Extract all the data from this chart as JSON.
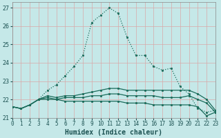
{
  "title": "",
  "xlabel": "Humidex (Indice chaleur)",
  "xlim": [
    0,
    23
  ],
  "ylim": [
    21.0,
    27.3
  ],
  "yticks": [
    21,
    22,
    23,
    24,
    25,
    26,
    27
  ],
  "xticks": [
    0,
    1,
    2,
    3,
    4,
    5,
    6,
    7,
    8,
    9,
    10,
    11,
    12,
    13,
    14,
    15,
    16,
    17,
    18,
    19,
    20,
    21,
    22,
    23
  ],
  "background_color": "#c5e8e8",
  "grid_color": "#d9a8a8",
  "line_color": "#1a6b5a",
  "series": [
    {
      "x": [
        0,
        1,
        2,
        3,
        4,
        5,
        6,
        7,
        8,
        9,
        10,
        11,
        12,
        13,
        14,
        15,
        16,
        17,
        18,
        19,
        20,
        21,
        22,
        23
      ],
      "y": [
        21.6,
        21.5,
        21.7,
        22.0,
        22.5,
        22.8,
        23.3,
        23.8,
        24.4,
        26.2,
        26.6,
        27.0,
        26.7,
        25.4,
        24.4,
        24.4,
        23.8,
        23.6,
        23.7,
        22.7,
        22.3,
        21.5,
        21.3,
        21.4
      ],
      "linestyle": "dotted",
      "linewidth": 0.9
    },
    {
      "x": [
        0,
        1,
        2,
        3,
        4,
        5,
        6,
        7,
        8,
        9,
        10,
        11,
        12,
        13,
        14,
        15,
        16,
        17,
        18,
        19,
        20,
        21,
        22,
        23
      ],
      "y": [
        21.6,
        21.5,
        21.7,
        22.0,
        22.2,
        22.1,
        22.2,
        22.2,
        22.3,
        22.4,
        22.5,
        22.6,
        22.6,
        22.5,
        22.5,
        22.5,
        22.5,
        22.5,
        22.5,
        22.5,
        22.5,
        22.3,
        22.0,
        21.4
      ],
      "linestyle": "solid",
      "linewidth": 0.9
    },
    {
      "x": [
        0,
        1,
        2,
        3,
        4,
        5,
        6,
        7,
        8,
        9,
        10,
        11,
        12,
        13,
        14,
        15,
        16,
        17,
        18,
        19,
        20,
        21,
        22,
        23
      ],
      "y": [
        21.6,
        21.5,
        21.7,
        22.0,
        22.1,
        22.0,
        22.1,
        22.1,
        22.1,
        22.2,
        22.2,
        22.3,
        22.3,
        22.2,
        22.2,
        22.2,
        22.2,
        22.1,
        22.1,
        22.1,
        22.2,
        22.0,
        21.8,
        21.3
      ],
      "linestyle": "solid",
      "linewidth": 0.9
    },
    {
      "x": [
        0,
        1,
        2,
        3,
        4,
        5,
        6,
        7,
        8,
        9,
        10,
        11,
        12,
        13,
        14,
        15,
        16,
        17,
        18,
        19,
        20,
        21,
        22,
        23
      ],
      "y": [
        21.6,
        21.5,
        21.7,
        22.0,
        22.0,
        22.0,
        21.9,
        21.9,
        21.9,
        21.9,
        21.9,
        21.9,
        21.9,
        21.8,
        21.8,
        21.8,
        21.7,
        21.7,
        21.7,
        21.7,
        21.7,
        21.6,
        21.1,
        21.3
      ],
      "linestyle": "solid",
      "linewidth": 0.9
    }
  ],
  "marker": ".",
  "markersize": 3.5,
  "tick_fontsize": 5.5,
  "xlabel_fontsize": 7.0
}
